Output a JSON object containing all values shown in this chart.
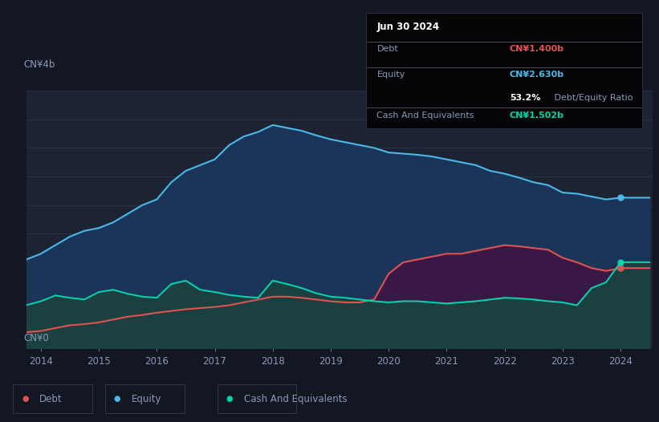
{
  "background_color": "#131722",
  "plot_bg_color": "#1c2333",
  "below_zero_color": "#252d3d",
  "debt_color": "#e05252",
  "equity_color": "#4ab8e8",
  "cash_color": "#00d4aa",
  "fill_equity_color": "#1a3a5c",
  "fill_cash_equity_color": "#1a4535",
  "fill_debt_cash_color": "#3d1a50",
  "grid_color": "#2a3550",
  "text_color": "#8899bb",
  "x_ticks": [
    2014,
    2015,
    2016,
    2017,
    2018,
    2019,
    2020,
    2021,
    2022,
    2023,
    2024
  ],
  "years": [
    2013.75,
    2014.0,
    2014.25,
    2014.5,
    2014.75,
    2015.0,
    2015.25,
    2015.5,
    2015.75,
    2016.0,
    2016.25,
    2016.5,
    2016.75,
    2017.0,
    2017.25,
    2017.5,
    2017.75,
    2018.0,
    2018.25,
    2018.5,
    2018.75,
    2019.0,
    2019.25,
    2019.5,
    2019.75,
    2020.0,
    2020.25,
    2020.5,
    2020.75,
    2021.0,
    2021.25,
    2021.5,
    2021.75,
    2022.0,
    2022.25,
    2022.5,
    2022.75,
    2023.0,
    2023.25,
    2023.5,
    2023.75,
    2024.0,
    2024.25,
    2024.5
  ],
  "equity": [
    1.55,
    1.65,
    1.8,
    1.95,
    2.05,
    2.1,
    2.2,
    2.35,
    2.5,
    2.6,
    2.9,
    3.1,
    3.2,
    3.3,
    3.55,
    3.7,
    3.78,
    3.9,
    3.85,
    3.8,
    3.72,
    3.65,
    3.6,
    3.55,
    3.5,
    3.42,
    3.4,
    3.38,
    3.35,
    3.3,
    3.25,
    3.2,
    3.1,
    3.05,
    2.98,
    2.9,
    2.85,
    2.72,
    2.7,
    2.65,
    2.6,
    2.63,
    2.63,
    2.63
  ],
  "debt": [
    0.28,
    0.3,
    0.35,
    0.4,
    0.42,
    0.45,
    0.5,
    0.55,
    0.58,
    0.62,
    0.65,
    0.68,
    0.7,
    0.72,
    0.75,
    0.8,
    0.85,
    0.9,
    0.9,
    0.88,
    0.85,
    0.82,
    0.8,
    0.8,
    0.85,
    1.3,
    1.5,
    1.55,
    1.6,
    1.65,
    1.65,
    1.7,
    1.75,
    1.8,
    1.78,
    1.75,
    1.72,
    1.58,
    1.5,
    1.4,
    1.35,
    1.4,
    1.4,
    1.4
  ],
  "cash": [
    0.75,
    0.82,
    0.92,
    0.88,
    0.85,
    0.98,
    1.02,
    0.95,
    0.9,
    0.88,
    1.12,
    1.18,
    1.02,
    0.98,
    0.93,
    0.9,
    0.88,
    1.18,
    1.12,
    1.05,
    0.96,
    0.9,
    0.88,
    0.85,
    0.82,
    0.8,
    0.82,
    0.82,
    0.8,
    0.78,
    0.8,
    0.82,
    0.85,
    0.88,
    0.87,
    0.85,
    0.82,
    0.8,
    0.75,
    1.05,
    1.15,
    1.502,
    1.502,
    1.502
  ],
  "tooltip": {
    "date": "Jun 30 2024",
    "debt_label": "Debt",
    "debt_value": "CN¥1.400b",
    "equity_label": "Equity",
    "equity_value": "CN¥2.630b",
    "ratio_bold": "53.2%",
    "ratio_text": " Debt/Equity Ratio",
    "cash_label": "Cash And Equivalents",
    "cash_value": "CN¥1.502b"
  },
  "legend": [
    {
      "label": "Debt",
      "color": "#e05252"
    },
    {
      "label": "Equity",
      "color": "#4ab8e8"
    },
    {
      "label": "Cash And Equivalents",
      "color": "#00d4aa"
    }
  ]
}
